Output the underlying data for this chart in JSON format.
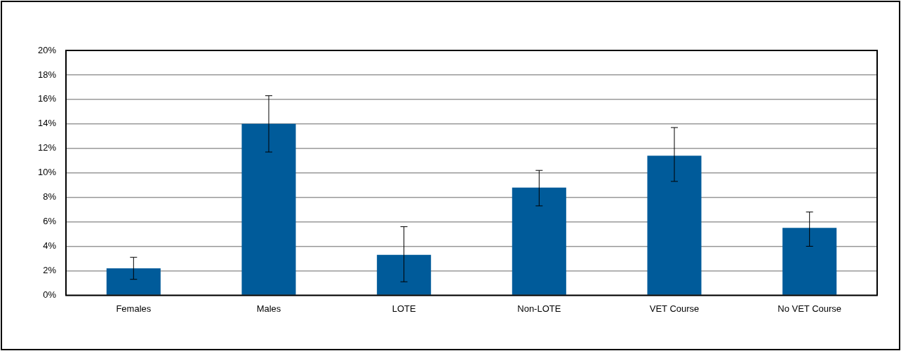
{
  "chart_data": {
    "type": "bar",
    "categories": [
      "Females",
      "Males",
      "LOTE",
      "Non-LOTE",
      "VET Course",
      "No VET Course"
    ],
    "values": [
      2.2,
      14.0,
      3.3,
      8.8,
      11.4,
      5.5
    ],
    "errors": [
      [
        1.3,
        3.1
      ],
      [
        11.7,
        16.3
      ],
      [
        1.1,
        5.6
      ],
      [
        7.3,
        10.2
      ],
      [
        9.3,
        13.7
      ],
      [
        4.0,
        6.8
      ]
    ],
    "color": "#005b9a",
    "ylim": [
      0,
      20
    ],
    "yticks": [
      {
        "value": 0,
        "label": "0%"
      },
      {
        "value": 2,
        "label": "2%"
      },
      {
        "value": 4,
        "label": "4%"
      },
      {
        "value": 6,
        "label": "6%"
      },
      {
        "value": 8,
        "label": "8%"
      },
      {
        "value": 10,
        "label": "10%"
      },
      {
        "value": 12,
        "label": "12%"
      },
      {
        "value": 14,
        "label": "14%"
      },
      {
        "value": 16,
        "label": "16%"
      },
      {
        "value": 18,
        "label": "18%"
      },
      {
        "value": 20,
        "label": "20%"
      }
    ],
    "grid": "y",
    "legend": false
  }
}
